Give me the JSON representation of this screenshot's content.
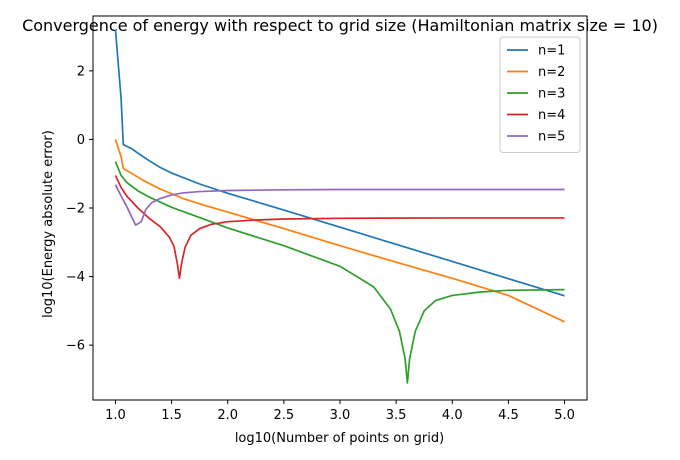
{
  "chart_data": {
    "type": "line",
    "title": "Convergence of energy with respect to grid size (Hamiltonian matrix size = 10)",
    "xlabel": "log10(Number of points on grid)",
    "ylabel": "log10(Energy absolute error)",
    "xlim": [
      0.8,
      5.2
    ],
    "ylim": [
      -7.6,
      3.6
    ],
    "grid": false,
    "legend_position": "top-right",
    "x_ticks": [
      1.0,
      1.5,
      2.0,
      2.5,
      3.0,
      3.5,
      4.0,
      4.5,
      5.0
    ],
    "x_tick_labels": [
      "1.0",
      "1.5",
      "2.0",
      "2.5",
      "3.0",
      "3.5",
      "4.0",
      "4.5",
      "5.0"
    ],
    "y_ticks": [
      -6,
      -4,
      -2,
      0,
      2
    ],
    "y_tick_labels": [
      "−6",
      "−4",
      "−2",
      "0",
      "2"
    ],
    "series": [
      {
        "name": "n=1",
        "color": "#1f77b4",
        "points": [
          [
            1.0,
            3.2
          ],
          [
            1.05,
            1.2
          ],
          [
            1.07,
            -0.15
          ],
          [
            1.15,
            -0.28
          ],
          [
            1.2,
            -0.4
          ],
          [
            1.3,
            -0.62
          ],
          [
            1.4,
            -0.82
          ],
          [
            1.5,
            -0.98
          ],
          [
            1.75,
            -1.3
          ],
          [
            2.0,
            -1.57
          ],
          [
            2.5,
            -2.06
          ],
          [
            3.0,
            -2.56
          ],
          [
            3.5,
            -3.06
          ],
          [
            4.0,
            -3.56
          ],
          [
            4.5,
            -4.06
          ],
          [
            5.0,
            -4.56
          ]
        ]
      },
      {
        "name": "n=2",
        "color": "#ff7f0e",
        "points": [
          [
            1.0,
            0.0
          ],
          [
            1.05,
            -0.5
          ],
          [
            1.07,
            -0.85
          ],
          [
            1.15,
            -1.0
          ],
          [
            1.25,
            -1.2
          ],
          [
            1.4,
            -1.45
          ],
          [
            1.6,
            -1.72
          ],
          [
            1.8,
            -1.93
          ],
          [
            2.0,
            -2.12
          ],
          [
            2.5,
            -2.6
          ],
          [
            3.0,
            -3.1
          ],
          [
            3.5,
            -3.58
          ],
          [
            4.0,
            -4.05
          ],
          [
            4.5,
            -4.55
          ],
          [
            5.0,
            -5.32
          ]
        ]
      },
      {
        "name": "n=3",
        "color": "#2ca02c",
        "points": [
          [
            1.0,
            -0.65
          ],
          [
            1.05,
            -1.05
          ],
          [
            1.1,
            -1.25
          ],
          [
            1.2,
            -1.5
          ],
          [
            1.3,
            -1.68
          ],
          [
            1.5,
            -1.98
          ],
          [
            1.75,
            -2.28
          ],
          [
            2.0,
            -2.58
          ],
          [
            2.5,
            -3.1
          ],
          [
            3.0,
            -3.7
          ],
          [
            3.3,
            -4.3
          ],
          [
            3.45,
            -4.95
          ],
          [
            3.53,
            -5.6
          ],
          [
            3.58,
            -6.4
          ],
          [
            3.6,
            -7.1
          ],
          [
            3.62,
            -6.4
          ],
          [
            3.67,
            -5.6
          ],
          [
            3.75,
            -5.0
          ],
          [
            3.85,
            -4.7
          ],
          [
            4.0,
            -4.55
          ],
          [
            4.25,
            -4.45
          ],
          [
            4.5,
            -4.4
          ],
          [
            5.0,
            -4.38
          ]
        ]
      },
      {
        "name": "n=4",
        "color": "#d62728",
        "points": [
          [
            1.0,
            -1.05
          ],
          [
            1.05,
            -1.4
          ],
          [
            1.1,
            -1.65
          ],
          [
            1.2,
            -2.0
          ],
          [
            1.3,
            -2.3
          ],
          [
            1.4,
            -2.55
          ],
          [
            1.48,
            -2.85
          ],
          [
            1.52,
            -3.1
          ],
          [
            1.55,
            -3.6
          ],
          [
            1.57,
            -4.05
          ],
          [
            1.59,
            -3.6
          ],
          [
            1.62,
            -3.15
          ],
          [
            1.67,
            -2.8
          ],
          [
            1.75,
            -2.6
          ],
          [
            1.85,
            -2.48
          ],
          [
            2.0,
            -2.4
          ],
          [
            2.25,
            -2.35
          ],
          [
            2.5,
            -2.32
          ],
          [
            3.0,
            -2.3
          ],
          [
            4.0,
            -2.29
          ],
          [
            5.0,
            -2.29
          ]
        ]
      },
      {
        "name": "n=5",
        "color": "#9467bd",
        "points": [
          [
            1.0,
            -1.32
          ],
          [
            1.05,
            -1.65
          ],
          [
            1.1,
            -1.95
          ],
          [
            1.15,
            -2.3
          ],
          [
            1.18,
            -2.5
          ],
          [
            1.23,
            -2.4
          ],
          [
            1.27,
            -2.05
          ],
          [
            1.32,
            -1.85
          ],
          [
            1.4,
            -1.72
          ],
          [
            1.5,
            -1.62
          ],
          [
            1.6,
            -1.56
          ],
          [
            1.75,
            -1.52
          ],
          [
            2.0,
            -1.49
          ],
          [
            2.5,
            -1.47
          ],
          [
            3.0,
            -1.46
          ],
          [
            4.0,
            -1.46
          ],
          [
            5.0,
            -1.46
          ]
        ]
      }
    ]
  }
}
